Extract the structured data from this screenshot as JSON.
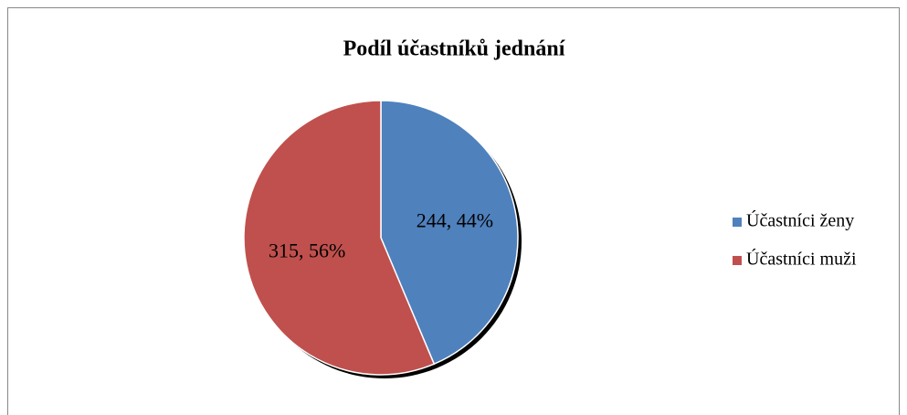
{
  "chart_data": {
    "type": "pie",
    "title": "Podíl účastníků jednání",
    "categories": [
      "Účastníci ženy",
      "Účastníci muži"
    ],
    "values": [
      244,
      315
    ],
    "value_labels": [
      "244, 44%",
      "315, 56%"
    ],
    "colors": [
      "#4f81bd",
      "#c0504d"
    ],
    "legend": "right"
  }
}
